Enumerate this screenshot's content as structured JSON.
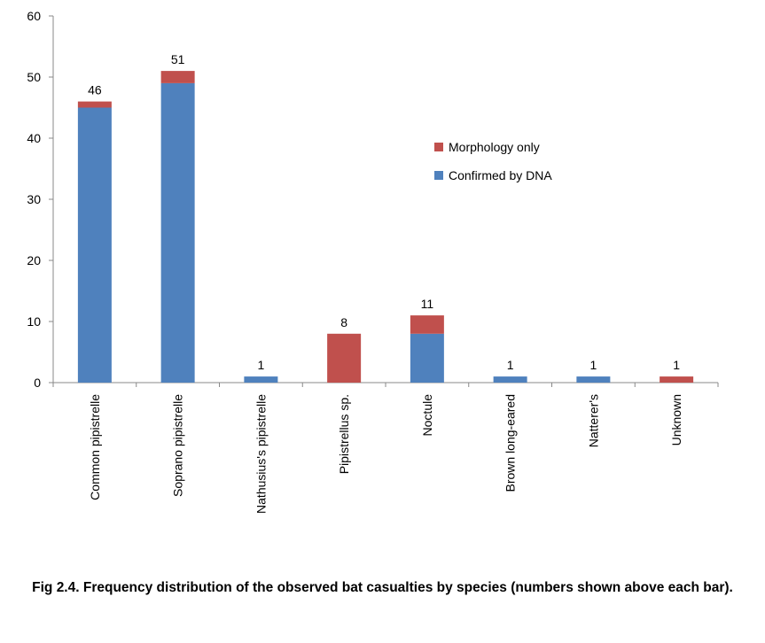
{
  "chart_data": {
    "type": "stacked_bar",
    "categories": [
      "Common pipistrelle",
      "Soprano pipistrelle",
      "Nathusius's pipistrelle",
      "Pipistrellus sp.",
      "Noctule",
      "Brown long-eared",
      "Natterer's",
      "Unknown"
    ],
    "series": [
      {
        "name": "Confirmed by DNA",
        "color": "#4f81bd",
        "values": [
          45,
          49,
          1,
          0,
          8,
          1,
          1,
          0
        ]
      },
      {
        "name": "Morphology only",
        "color": "#c0504d",
        "values": [
          1,
          2,
          0,
          8,
          3,
          0,
          0,
          1
        ]
      }
    ],
    "totals": [
      46,
      51,
      1,
      8,
      11,
      1,
      1,
      1
    ],
    "ylim": [
      0,
      60
    ],
    "yticks": [
      0,
      10,
      20,
      30,
      40,
      50,
      60
    ],
    "grid": false,
    "caption": "Fig 2.4.  Frequency distribution of the observed bat casualties by species (numbers shown above each bar)."
  }
}
